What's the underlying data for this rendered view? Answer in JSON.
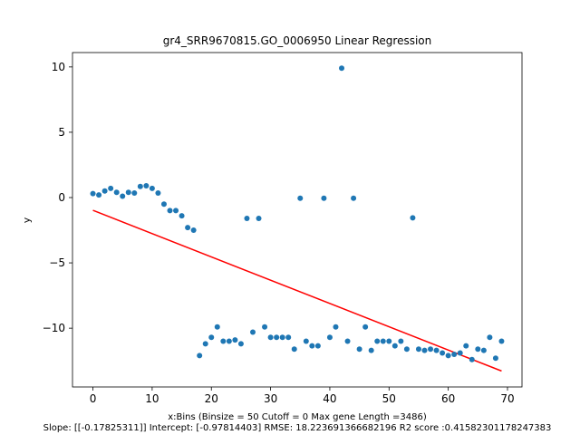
{
  "chart_data": {
    "type": "scatter",
    "title": "gr4_SRR9670815.GO_0006950 Linear Regression",
    "xlabel": "x:Bins  (Binsize = 50 Cutoff = 0 Max gene Length =3486)",
    "xlabel2": "Slope: [[-0.17825311]] Intercept: [-0.97814403] RMSE: 18.223691366682196 R2 score :0.41582301178247383",
    "ylabel": "y",
    "xlim": [
      -3.45,
      72.45
    ],
    "ylim": [
      -14.5,
      11.1
    ],
    "xticks": [
      0,
      10,
      20,
      30,
      40,
      50,
      60,
      70
    ],
    "yticks": [
      -10,
      -5,
      0,
      5,
      10
    ],
    "colors": {
      "points": "#1f77b4",
      "fit": "#ff0000"
    },
    "series": [
      {
        "type": "scatter",
        "x": [
          0,
          1,
          2,
          3,
          4,
          5,
          6,
          7,
          8,
          9,
          10,
          11,
          12,
          13,
          14,
          15,
          16,
          17,
          18,
          19,
          20,
          21,
          22,
          23,
          24,
          25,
          26,
          27,
          28,
          29,
          30,
          31,
          32,
          33,
          34,
          35,
          36,
          37,
          38,
          39,
          40,
          41,
          42,
          43,
          44,
          45,
          46,
          47,
          48,
          49,
          50,
          51,
          52,
          53,
          54,
          55,
          56,
          57,
          58,
          59,
          60,
          61,
          62,
          63,
          64,
          65,
          66,
          67,
          68,
          69
        ],
        "y": [
          0.3,
          0.2,
          0.5,
          0.7,
          0.4,
          0.1,
          0.4,
          0.35,
          0.85,
          0.9,
          0.7,
          0.35,
          -0.5,
          -1.0,
          -1.0,
          -1.4,
          -2.3,
          -2.5,
          -12.1,
          -11.2,
          -10.7,
          -9.9,
          -11.0,
          -11.0,
          -10.9,
          -11.2,
          -1.6,
          -10.3,
          -1.6,
          -9.9,
          -10.7,
          -10.7,
          -10.7,
          -10.7,
          -11.6,
          -0.05,
          -11.0,
          -11.35,
          -11.35,
          -0.05,
          -10.7,
          -9.9,
          9.9,
          -11.0,
          -0.05,
          -11.6,
          -9.9,
          -11.7,
          -11.0,
          -11.0,
          -11.0,
          -11.35,
          -11.0,
          -11.6,
          -1.55,
          -11.6,
          -11.7,
          -11.6,
          -11.7,
          -11.9,
          -12.1,
          -12.0,
          -11.9,
          -11.35,
          -12.4,
          -11.6,
          -11.7,
          -10.7,
          -12.3,
          -11.0
        ]
      },
      {
        "type": "line",
        "x": [
          0,
          69
        ],
        "y": [
          -0.97814403,
          -13.2776086
        ]
      }
    ]
  }
}
